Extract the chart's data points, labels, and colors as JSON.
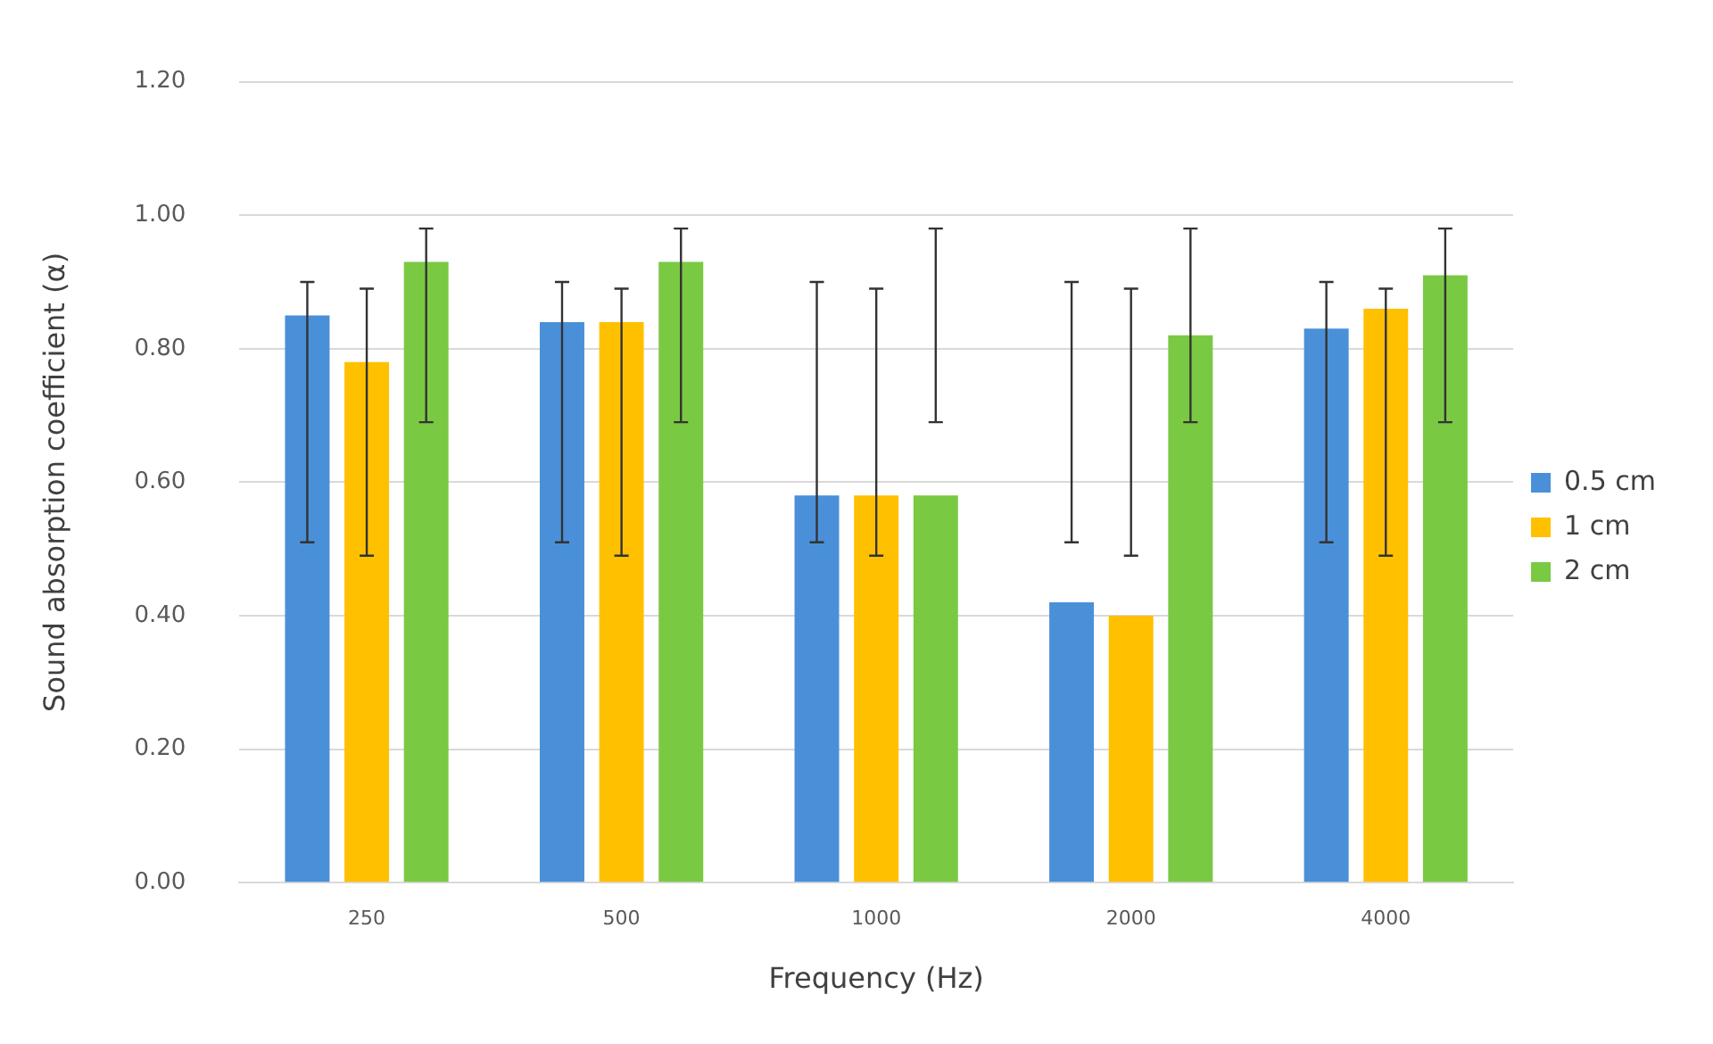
{
  "chart_data": {
    "type": "bar",
    "xlabel": "Frequency (Hz)",
    "ylabel": "Sound absorption coefficient (α)",
    "categories": [
      "250",
      "500",
      "1000",
      "2000",
      "4000"
    ],
    "series": [
      {
        "name": "0.5 cm",
        "color": "#4a90d9",
        "values": [
          0.85,
          0.84,
          0.58,
          0.42,
          0.83
        ],
        "errors": [
          [
            0.51,
            0.9
          ],
          [
            0.51,
            0.9
          ],
          [
            0.51,
            0.9
          ],
          [
            0.51,
            0.9
          ],
          [
            0.51,
            0.9
          ]
        ]
      },
      {
        "name": "1 cm",
        "color": "#ffc000",
        "values": [
          0.78,
          0.84,
          0.58,
          0.4,
          0.86
        ],
        "errors": [
          [
            0.49,
            0.89
          ],
          [
            0.49,
            0.89
          ],
          [
            0.49,
            0.89
          ],
          [
            0.49,
            0.89
          ],
          [
            0.49,
            0.89
          ]
        ]
      },
      {
        "name": "2 cm",
        "color": "#7ac943",
        "values": [
          0.93,
          0.93,
          0.58,
          0.82,
          0.91
        ],
        "errors": [
          [
            0.69,
            0.98
          ],
          [
            0.69,
            0.98
          ],
          [
            0.69,
            0.98
          ],
          [
            0.69,
            0.98
          ],
          [
            0.69,
            0.98
          ]
        ]
      }
    ],
    "ylim": [
      0,
      1.2
    ],
    "yticks": [
      {
        "value": 0,
        "label": "0.00"
      },
      {
        "value": 0.2,
        "label": "0.20"
      },
      {
        "value": 0.4,
        "label": "0.40"
      },
      {
        "value": 0.6,
        "label": "0.60"
      },
      {
        "value": 0.8,
        "label": "0.80"
      },
      {
        "value": 1.0,
        "label": "1.00"
      },
      {
        "value": 1.2,
        "label": "1.20"
      }
    ],
    "grid": "y",
    "legend": "right"
  }
}
